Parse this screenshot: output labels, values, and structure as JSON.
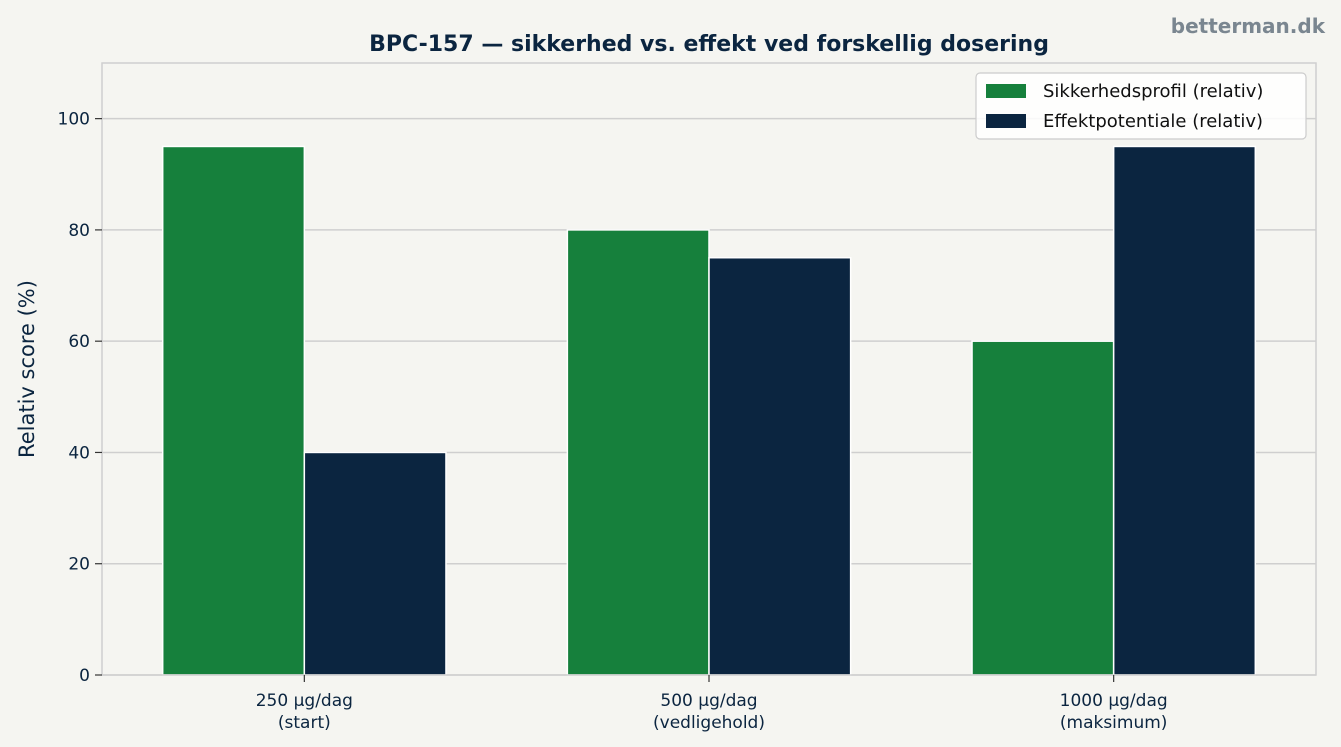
{
  "watermark": "betterman.dk",
  "chart_data": {
    "type": "bar",
    "title": "BPC-157 — sikkerhed vs. effekt ved forskellig dosering",
    "xlabel": "",
    "ylabel": "Relativ score (%)",
    "categories": [
      [
        "250 µg/dag",
        "(start)"
      ],
      [
        "500 µg/dag",
        "(vedligehold)"
      ],
      [
        "1000 µg/dag",
        "(maksimum)"
      ]
    ],
    "series": [
      {
        "name": "Sikkerhedsprofil (relativ)",
        "values": [
          95,
          80,
          60
        ],
        "color": "#16803c"
      },
      {
        "name": "Effektpotentiale (relativ)",
        "values": [
          40,
          75,
          95
        ],
        "color": "#0b2540"
      }
    ],
    "ylim": [
      0,
      110
    ],
    "yticks": [
      0,
      20,
      40,
      60,
      80,
      100
    ],
    "grid": "horizontal",
    "legend": "top-right"
  }
}
